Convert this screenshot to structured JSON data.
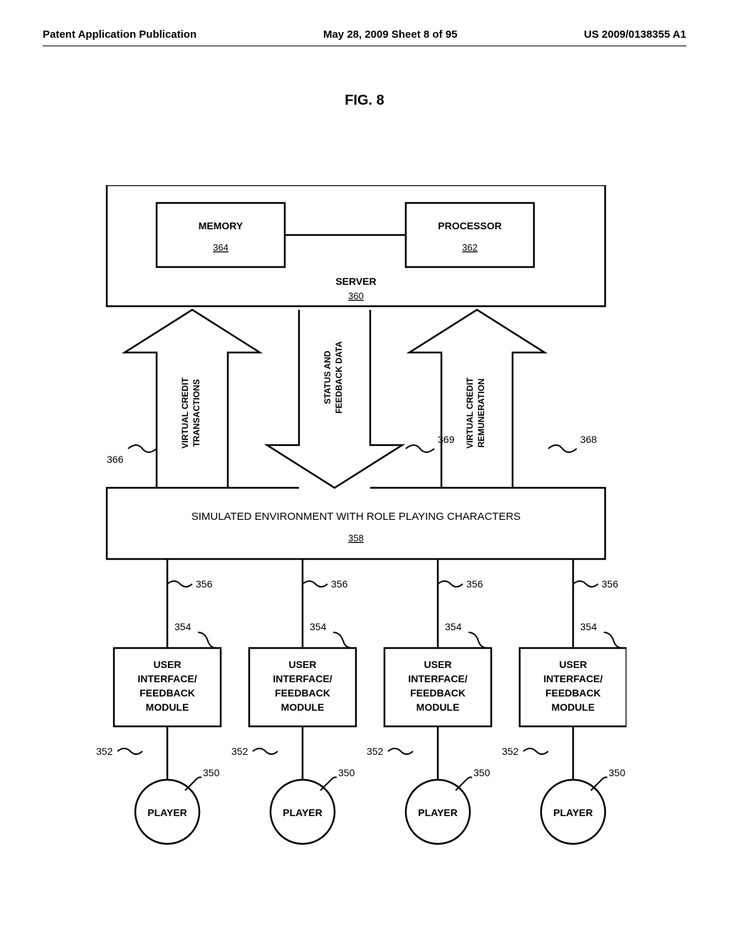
{
  "header": {
    "left": "Patent Application Publication",
    "center": "May 28, 2009  Sheet 8 of 95",
    "right": "US 2009/0138355 A1"
  },
  "figure_title": "FIG. 8",
  "diagram": {
    "server": {
      "label": "SERVER",
      "ref": "360",
      "memory_label": "MEMORY",
      "memory_ref": "364",
      "processor_label": "PROCESSOR",
      "processor_ref": "362"
    },
    "arrows": {
      "vct_line1": "VIRTUAL CREDIT",
      "vct_line2": "TRANSACTIONS",
      "vct_ref": "366",
      "status_line1": "STATUS AND",
      "status_line2": "FEEDBACK DATA",
      "status_ref": "369",
      "vcr_line1": "VIRTUAL CREDIT",
      "vcr_line2": "REMUNERATION",
      "vcr_ref": "368"
    },
    "sim": {
      "title": "SIMULATED ENVIRONMENT WITH ROLE PLAYING CHARACTERS",
      "ref": "358"
    },
    "ui": {
      "line1": "USER",
      "line2": "INTERFACE/",
      "line3": "FEEDBACK",
      "line4": "MODULE",
      "ref": "354",
      "conn_ref": "356"
    },
    "player": {
      "label": "PLAYER",
      "ref": "350",
      "conn_ref": "352"
    },
    "style": {
      "stroke": "#000000",
      "stroke_width": 2.5,
      "thin_stroke": 2,
      "background": "#ffffff",
      "font_color": "#000000"
    }
  }
}
